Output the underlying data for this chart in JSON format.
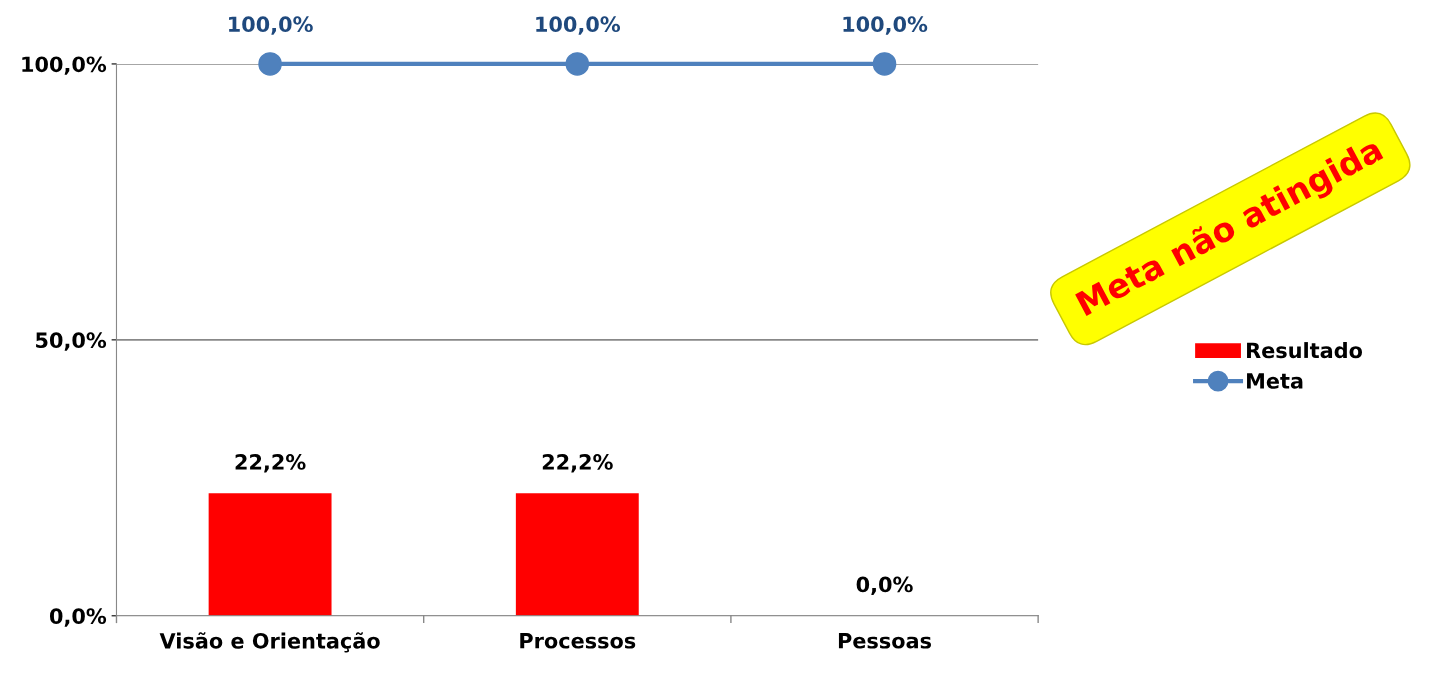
{
  "chart_data": {
    "type": "bar",
    "categories": [
      "Visão e Orientação",
      "Processos",
      "Pessoas"
    ],
    "series": [
      {
        "name": "Resultado",
        "color": "#ff0000",
        "values": [
          22.2,
          22.2,
          0.0
        ],
        "value_labels": [
          "22,2%",
          "22,2%",
          "0,0%"
        ]
      },
      {
        "name": "Meta",
        "type": "line",
        "color": "#4f81bd",
        "values": [
          100,
          100,
          100
        ],
        "value_labels": [
          "100,0%",
          "100,0%",
          "100,0%"
        ],
        "marker": "circle",
        "line_style": "solid"
      }
    ],
    "ylim": [
      0,
      100
    ],
    "yticks": [
      {
        "value": 0,
        "label": "0,0%"
      },
      {
        "value": 50,
        "label": "50,0%"
      },
      {
        "value": 100,
        "label": "100,0%"
      }
    ],
    "grid": "y",
    "legend": "right",
    "annotations": [
      "Meta não atingida"
    ]
  }
}
